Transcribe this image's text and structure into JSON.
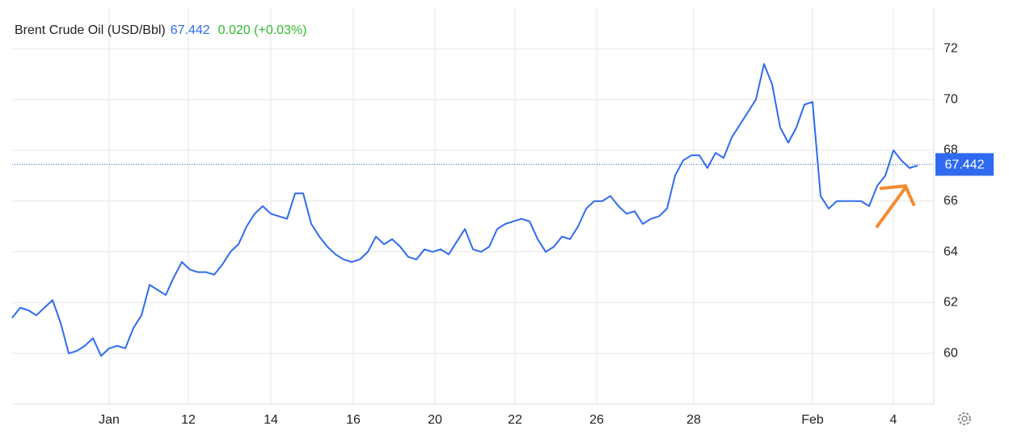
{
  "chart_data": {
    "type": "line",
    "title": "Brent Crude Oil (USD/Bbl)",
    "last_price": 67.442,
    "change": "0.020 (+0.03%)",
    "color": "#2f6bf0",
    "grid": true,
    "x": [
      0,
      1,
      2,
      3,
      4,
      5,
      6,
      7,
      8,
      9,
      10,
      11,
      12,
      13,
      14,
      15,
      16,
      17,
      18,
      19,
      20,
      21,
      22,
      23,
      24,
      25,
      26,
      27,
      28,
      29,
      30,
      31,
      32,
      33,
      34,
      35,
      36,
      37,
      38,
      39,
      40,
      41,
      42,
      43,
      44,
      45,
      46,
      47,
      48,
      49,
      50,
      51,
      52,
      53,
      54,
      55,
      56,
      57,
      58,
      59,
      60,
      61,
      62,
      63,
      64,
      65,
      66,
      67,
      68,
      69,
      70,
      71,
      72,
      73,
      74,
      75,
      76,
      77,
      78,
      79,
      80,
      81,
      82,
      83,
      84,
      85,
      86,
      87,
      88,
      89,
      90,
      91,
      92,
      93,
      94,
      95,
      96,
      97,
      98,
      99,
      100,
      101,
      102,
      103,
      104,
      105,
      106,
      107,
      108,
      109,
      110,
      111,
      112
    ],
    "values": [
      61.4,
      61.8,
      61.7,
      61.5,
      61.8,
      62.1,
      61.2,
      60.0,
      60.1,
      60.3,
      60.6,
      59.9,
      60.2,
      60.3,
      60.2,
      61.0,
      61.5,
      62.7,
      62.5,
      62.3,
      63.0,
      63.6,
      63.3,
      63.2,
      63.2,
      63.1,
      63.5,
      64.0,
      64.3,
      65.0,
      65.5,
      65.8,
      65.5,
      65.4,
      65.3,
      66.3,
      66.3,
      65.1,
      64.6,
      64.2,
      63.9,
      63.7,
      63.6,
      63.7,
      64.0,
      64.6,
      64.3,
      64.5,
      64.2,
      63.8,
      63.7,
      64.1,
      64.0,
      64.1,
      63.9,
      64.4,
      64.9,
      64.1,
      64.0,
      64.2,
      64.9,
      65.1,
      65.2,
      65.3,
      65.2,
      64.5,
      64.0,
      64.2,
      64.6,
      64.5,
      65.0,
      65.7,
      66.0,
      66.0,
      66.2,
      65.8,
      65.5,
      65.6,
      65.1,
      65.3,
      65.4,
      65.7,
      67.0,
      67.6,
      67.8,
      67.8,
      67.3,
      67.9,
      67.7,
      68.5,
      69.0,
      69.5,
      70.0,
      71.4,
      70.6,
      68.9,
      68.3,
      68.9,
      69.8,
      69.9,
      66.2,
      65.7,
      66.0,
      66.0,
      66.0,
      66.0,
      65.8,
      66.6,
      67.0,
      68.0,
      67.6,
      67.3,
      67.4
    ],
    "xlim": [
      0,
      112.5
    ],
    "xticks": [
      {
        "value": 12,
        "label": "Jan"
      },
      {
        "value": 21.8,
        "label": "12"
      },
      {
        "value": 32,
        "label": "14"
      },
      {
        "value": 42.2,
        "label": "16"
      },
      {
        "value": 52.3,
        "label": "20"
      },
      {
        "value": 62.2,
        "label": "22"
      },
      {
        "value": 72.3,
        "label": "26"
      },
      {
        "value": 84.3,
        "label": "28"
      },
      {
        "value": 99,
        "label": "Feb"
      },
      {
        "value": 109,
        "label": "4"
      }
    ],
    "ylim": [
      58,
      73.6
    ],
    "yticks": [
      60,
      62,
      64,
      66,
      68,
      70,
      72
    ]
  }
}
